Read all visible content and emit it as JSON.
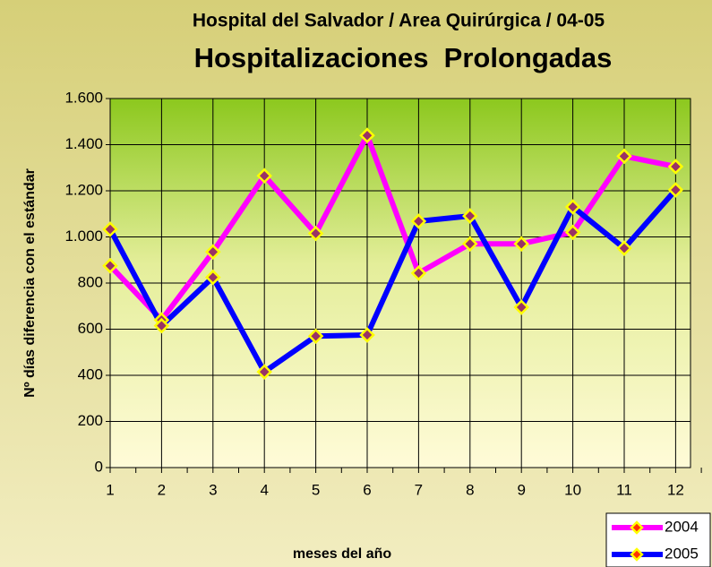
{
  "chart_data": {
    "type": "line",
    "title": "Hospital del Salvador / Area Quirúrgica / 04-05",
    "subtitle": "Hospitalizaciones  Prolongadas",
    "x_label": "meses del año",
    "y_label": "Nº días diferencia con el estándar",
    "categories": [
      "1",
      "2",
      "3",
      "4",
      "5",
      "6",
      "7",
      "8",
      "9",
      "10",
      "11",
      "12"
    ],
    "series": [
      {
        "name": "2004",
        "color": "#ff00ff",
        "values": [
          875,
          640,
          935,
          1265,
          1015,
          1440,
          843,
          970,
          970,
          1020,
          1350,
          1305
        ]
      },
      {
        "name": "2005",
        "color": "#0000ff",
        "values": [
          1033,
          615,
          825,
          415,
          570,
          575,
          1068,
          1091,
          695,
          1130,
          951,
          1204
        ]
      }
    ],
    "marker_fill": "#993366",
    "marker_edge": "#ffff00",
    "ylim": [
      0,
      1600
    ],
    "yticks": [
      0,
      200,
      400,
      600,
      800,
      {
        "value": 1000,
        "label": "1.000"
      },
      {
        "value": 1200,
        "label": "1.200"
      },
      {
        "value": 1400,
        "label": "1.400"
      },
      {
        "value": 1600,
        "label": "1.600"
      }
    ],
    "grid": true,
    "legend": "lower right"
  }
}
